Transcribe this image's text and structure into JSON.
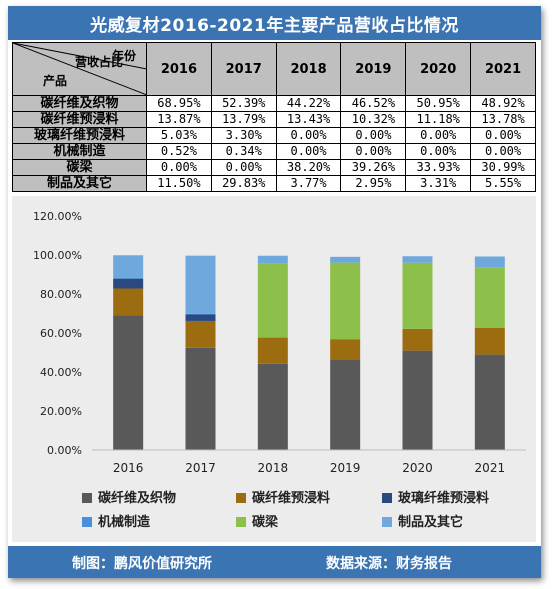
{
  "title": "光威复材2016-2021年主要产品营收占比情况",
  "table": {
    "corner_year": "年份",
    "corner_mid": "营收占比",
    "corner_product": "产品",
    "years": [
      "2016",
      "2017",
      "2018",
      "2019",
      "2020",
      "2021"
    ],
    "rows": [
      {
        "name": "碳纤维及织物",
        "values": [
          "68.95%",
          "52.39%",
          "44.22%",
          "46.52%",
          "50.95%",
          "48.92%"
        ]
      },
      {
        "name": "碳纤维预浸料",
        "values": [
          "13.87%",
          "13.79%",
          "13.43%",
          "10.32%",
          "11.18%",
          "13.78%"
        ]
      },
      {
        "name": "玻璃纤维预浸料",
        "values": [
          "5.03%",
          "3.30%",
          "0.00%",
          "0.00%",
          "0.00%",
          "0.00%"
        ]
      },
      {
        "name": "机械制造",
        "values": [
          "0.52%",
          "0.34%",
          "0.00%",
          "0.00%",
          "0.00%",
          "0.00%"
        ]
      },
      {
        "name": "碳梁",
        "values": [
          "0.00%",
          "0.00%",
          "38.20%",
          "39.26%",
          "33.93%",
          "30.99%"
        ]
      },
      {
        "name": "制品及其它",
        "values": [
          "11.50%",
          "29.83%",
          "3.77%",
          "2.95%",
          "3.31%",
          "5.55%"
        ]
      }
    ]
  },
  "chart_data": {
    "type": "bar",
    "stacked": true,
    "categories": [
      "2016",
      "2017",
      "2018",
      "2019",
      "2020",
      "2021"
    ],
    "ylim": [
      0,
      120
    ],
    "yticks": [
      "0.00%",
      "20.00%",
      "40.00%",
      "60.00%",
      "80.00%",
      "100.00%",
      "120.00%"
    ],
    "grid": false,
    "legend_position": "bottom",
    "series": [
      {
        "name": "碳纤维及织物",
        "color": "#595959",
        "values": [
          68.95,
          52.39,
          44.22,
          46.52,
          50.95,
          48.92
        ]
      },
      {
        "name": "碳纤维预浸料",
        "color": "#9c6d10",
        "values": [
          13.87,
          13.79,
          13.43,
          10.32,
          11.18,
          13.78
        ]
      },
      {
        "name": "玻璃纤维预浸料",
        "color": "#2a4a7f",
        "values": [
          5.03,
          3.3,
          0,
          0,
          0,
          0
        ]
      },
      {
        "name": "机械制造",
        "color": "#4a90d9",
        "values": [
          0.52,
          0.34,
          0,
          0,
          0,
          0
        ]
      },
      {
        "name": "碳梁",
        "color": "#8dc04a",
        "values": [
          0,
          0,
          38.2,
          39.26,
          33.93,
          30.99
        ]
      },
      {
        "name": "制品及其它",
        "color": "#6fa8dc",
        "values": [
          11.5,
          29.83,
          3.77,
          2.95,
          3.31,
          5.55
        ]
      }
    ]
  },
  "footer": {
    "maker": "制图：鹏风价值研究所",
    "source": "数据来源：财务报告"
  }
}
